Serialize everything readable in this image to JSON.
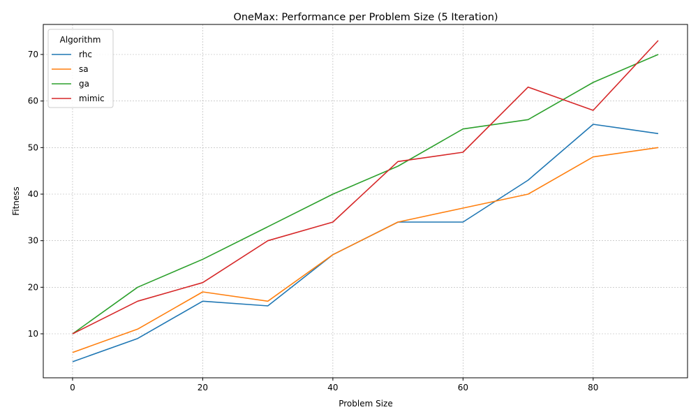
{
  "chart_data": {
    "type": "line",
    "title": "OneMax: Performance per Problem Size (5 Iteration)",
    "xlabel": "Problem Size",
    "ylabel": "Fitness",
    "xlim": [
      -4.5,
      94.5
    ],
    "ylim": [
      0.55,
      76.45
    ],
    "xticks": [
      0,
      20,
      40,
      60,
      80
    ],
    "yticks": [
      10,
      20,
      30,
      40,
      50,
      60,
      70
    ],
    "grid": true,
    "legend": {
      "title": "Algorithm",
      "placement": "upper-left"
    },
    "x": [
      0,
      10,
      20,
      30,
      40,
      50,
      60,
      70,
      80,
      90
    ],
    "series": [
      {
        "name": "rhc",
        "color": "#1f77b4",
        "values": [
          4,
          9,
          17,
          16,
          27,
          34,
          34,
          43,
          55,
          53
        ]
      },
      {
        "name": "sa",
        "color": "#ff7f0e",
        "values": [
          6,
          11,
          19,
          17,
          27,
          34,
          37,
          40,
          48,
          50
        ]
      },
      {
        "name": "ga",
        "color": "#2ca02c",
        "values": [
          10,
          20,
          26,
          33,
          40,
          46,
          54,
          56,
          64,
          70
        ]
      },
      {
        "name": "mimic",
        "color": "#d62728",
        "values": [
          10,
          17,
          21,
          30,
          34,
          47,
          49,
          63,
          58,
          73
        ]
      }
    ]
  }
}
